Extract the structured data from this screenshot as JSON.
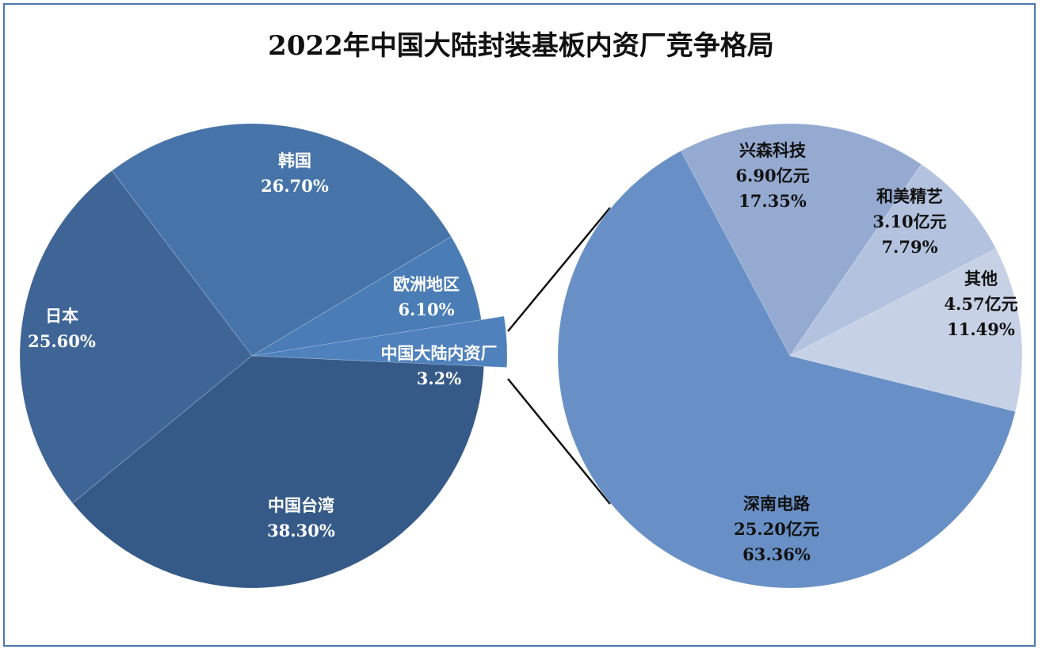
{
  "title": "2022年中国大陆封装基板内资厂竞争格局",
  "chart_data": [
    {
      "type": "pie",
      "slices": [
        {
          "label": "日本",
          "value_text": "25.60%",
          "value": 25.6,
          "color": "#3f6597",
          "text_color": "#ffffff"
        },
        {
          "label": "韩国",
          "value_text": "26.70%",
          "value": 26.7,
          "color": "#4674a9",
          "text_color": "#ffffff"
        },
        {
          "label": "欧洲地区",
          "value_text": "6.10%",
          "value": 6.1,
          "color": "#4a7cb6",
          "text_color": "#ffffff"
        },
        {
          "label": "中国大陆内资厂",
          "value_text": "3.2%",
          "value": 3.2,
          "color": "#4f81bd",
          "text_color": "#ffffff"
        },
        {
          "label": "中国台湾",
          "value_text": "38.30%",
          "value": 38.3,
          "color": "#365a87",
          "text_color": "#ffffff"
        }
      ]
    },
    {
      "type": "pie",
      "slices": [
        {
          "label": "兴森科技",
          "amount_text": "6.90亿元",
          "value_text": "17.35%",
          "value": 17.35,
          "color": "#95aad1",
          "text_color": "#111111"
        },
        {
          "label": "和美精艺",
          "amount_text": "3.10亿元",
          "value_text": "7.79%",
          "value": 7.79,
          "color": "#b3c2de",
          "text_color": "#111111"
        },
        {
          "label": "其他",
          "amount_text": "4.57亿元",
          "value_text": "11.49%",
          "value": 11.49,
          "color": "#c7d1e5",
          "text_color": "#111111"
        },
        {
          "label": "深南电路",
          "amount_text": "25.20亿元",
          "value_text": "63.36%",
          "value": 63.36,
          "color": "#6990c6",
          "text_color": "#111111"
        }
      ]
    }
  ]
}
